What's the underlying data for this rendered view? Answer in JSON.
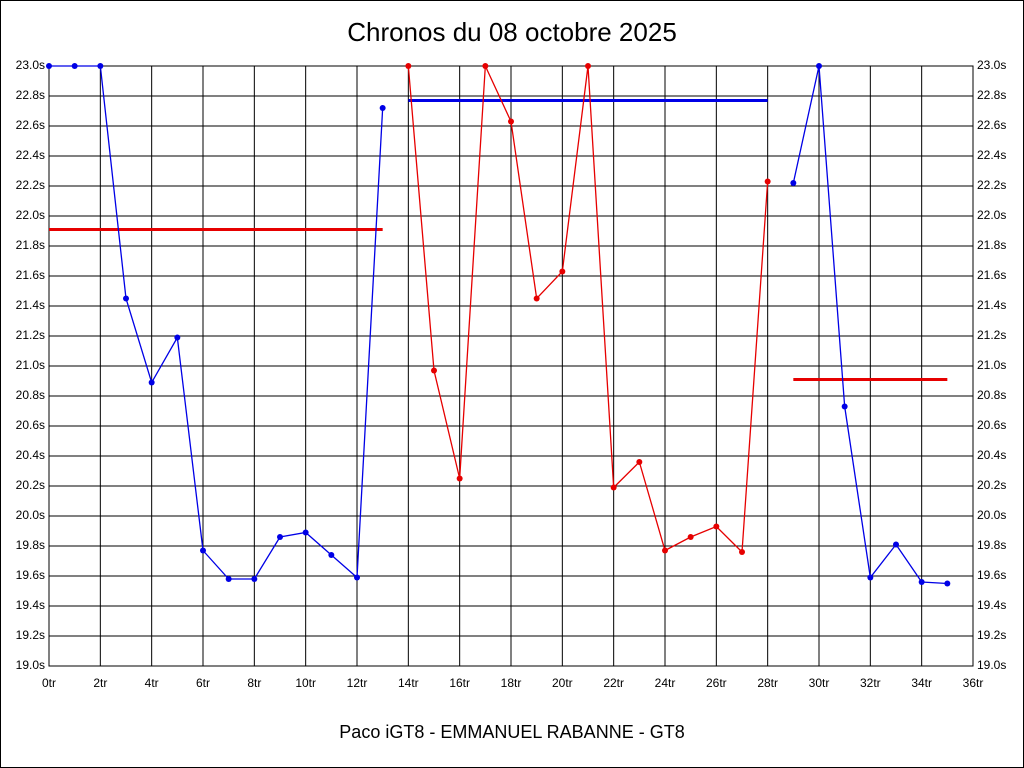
{
  "chart_data": {
    "type": "line",
    "title": "Chronos du 08 octobre 2025",
    "xlabel": "Paco iGT8 - EMMANUEL RABANNE - GT8",
    "x": [
      0,
      1,
      2,
      3,
      4,
      5,
      6,
      7,
      8,
      9,
      10,
      11,
      12,
      13,
      14,
      15,
      16,
      17,
      18,
      19,
      20,
      21,
      22,
      23,
      24,
      25,
      26,
      27,
      28,
      29,
      30,
      31,
      32,
      33,
      34,
      35
    ],
    "series": [
      {
        "color": "#0000e6",
        "values": [
          23.0,
          23.0,
          23.0,
          21.45,
          20.89,
          21.19,
          19.77,
          19.58,
          19.58,
          19.86,
          19.89,
          19.74,
          19.59,
          22.72,
          null,
          null,
          null,
          null,
          null,
          null,
          null,
          null,
          null,
          null,
          null,
          null,
          null,
          null,
          null,
          22.22,
          23.0,
          20.73,
          19.59,
          19.81,
          19.56,
          19.55
        ]
      },
      {
        "color": "#e60000",
        "values": [
          null,
          null,
          null,
          null,
          null,
          null,
          null,
          null,
          null,
          null,
          null,
          null,
          null,
          null,
          23.0,
          20.97,
          20.25,
          23.0,
          22.63,
          21.45,
          21.63,
          23.0,
          20.19,
          20.36,
          19.77,
          19.86,
          19.93,
          19.76,
          22.23,
          null,
          null,
          null,
          null,
          null,
          null,
          null
        ]
      }
    ],
    "reference_lines": [
      {
        "value": 21.91,
        "from": 0,
        "to": 13,
        "color": "#e60000"
      },
      {
        "value": 22.77,
        "from": 14,
        "to": 28,
        "color": "#0000e6"
      },
      {
        "value": 20.91,
        "from": 29,
        "to": 35,
        "color": "#e60000"
      }
    ],
    "xlim": [
      0,
      36
    ],
    "xticks": [
      {
        "value": 0,
        "label": "0tr"
      },
      {
        "value": 2,
        "label": "2tr"
      },
      {
        "value": 4,
        "label": "4tr"
      },
      {
        "value": 6,
        "label": "6tr"
      },
      {
        "value": 8,
        "label": "8tr"
      },
      {
        "value": 10,
        "label": "10tr"
      },
      {
        "value": 12,
        "label": "12tr"
      },
      {
        "value": 14,
        "label": "14tr"
      },
      {
        "value": 16,
        "label": "16tr"
      },
      {
        "value": 18,
        "label": "18tr"
      },
      {
        "value": 20,
        "label": "20tr"
      },
      {
        "value": 22,
        "label": "22tr"
      },
      {
        "value": 24,
        "label": "24tr"
      },
      {
        "value": 26,
        "label": "26tr"
      },
      {
        "value": 28,
        "label": "28tr"
      },
      {
        "value": 30,
        "label": "30tr"
      },
      {
        "value": 32,
        "label": "32tr"
      },
      {
        "value": 34,
        "label": "34tr"
      },
      {
        "value": 36,
        "label": "36tr"
      }
    ],
    "ylim": [
      19.0,
      23.0
    ],
    "yticks": [
      {
        "value": 19.0,
        "label": "19.0s"
      },
      {
        "value": 19.2,
        "label": "19.2s"
      },
      {
        "value": 19.4,
        "label": "19.4s"
      },
      {
        "value": 19.6,
        "label": "19.6s"
      },
      {
        "value": 19.8,
        "label": "19.8s"
      },
      {
        "value": 20.0,
        "label": "20.0s"
      },
      {
        "value": 20.2,
        "label": "20.2s"
      },
      {
        "value": 20.4,
        "label": "20.4s"
      },
      {
        "value": 20.6,
        "label": "20.6s"
      },
      {
        "value": 20.8,
        "label": "20.8s"
      },
      {
        "value": 21.0,
        "label": "21.0s"
      },
      {
        "value": 21.2,
        "label": "21.2s"
      },
      {
        "value": 21.4,
        "label": "21.4s"
      },
      {
        "value": 21.6,
        "label": "21.6s"
      },
      {
        "value": 21.8,
        "label": "21.8s"
      },
      {
        "value": 22.0,
        "label": "22.0s"
      },
      {
        "value": 22.2,
        "label": "22.2s"
      },
      {
        "value": 22.4,
        "label": "22.4s"
      },
      {
        "value": 22.6,
        "label": "22.6s"
      },
      {
        "value": 22.8,
        "label": "22.8s"
      },
      {
        "value": 23.0,
        "label": "23.0s"
      }
    ],
    "grid": true
  }
}
